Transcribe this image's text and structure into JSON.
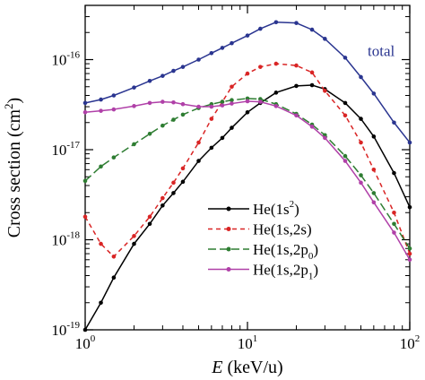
{
  "chart_data": {
    "type": "line",
    "xlabel": {
      "italic": "E",
      "rest": " (keV/u)"
    },
    "ylabel": {
      "base": "Cross section (cm",
      "sup": "2",
      "close": ")"
    },
    "x_scale": "log",
    "y_scale": "log",
    "xlim": [
      1,
      100
    ],
    "ylim": [
      1e-19,
      4e-16
    ],
    "grid": false,
    "x_ticks": [
      {
        "value": 1,
        "label": "10",
        "sup": "0"
      },
      {
        "value": 10,
        "label": "10",
        "sup": "1"
      },
      {
        "value": 100,
        "label": "10",
        "sup": "2"
      }
    ],
    "y_ticks": [
      {
        "value": 1e-19,
        "label": "10",
        "sup": "-19"
      },
      {
        "value": 1e-18,
        "label": "10",
        "sup": "-18"
      },
      {
        "value": 1e-17,
        "label": "10",
        "sup": "-17"
      },
      {
        "value": 1e-16,
        "label": "10",
        "sup": "-16"
      }
    ],
    "annotation": {
      "text": "total",
      "x": 55,
      "y": 1.1e-16,
      "color": "#2a3590"
    },
    "legend": {
      "placement": "lower-right"
    },
    "series": [
      {
        "id": "total",
        "color": "#2a3590",
        "dash": "none",
        "x": [
          1,
          1.25,
          1.5,
          2,
          2.5,
          3,
          3.5,
          4,
          5,
          6,
          7,
          8,
          10,
          12,
          15,
          20,
          25,
          30,
          40,
          50,
          60,
          80,
          100
        ],
        "y": [
          3.3e-17,
          3.6e-17,
          4e-17,
          4.9e-17,
          5.8e-17,
          6.6e-17,
          7.5e-17,
          8.3e-17,
          1e-16,
          1.18e-16,
          1.35e-16,
          1.52e-16,
          1.85e-16,
          2.2e-16,
          2.6e-16,
          2.55e-16,
          2.15e-16,
          1.7e-16,
          1.05e-16,
          6.4e-17,
          4.2e-17,
          2e-17,
          1.2e-17
        ]
      },
      {
        "id": "he-1s2",
        "name": {
          "base": "He(1s",
          "sup": "2",
          "sub": "",
          "close": ")"
        },
        "color": "#000000",
        "dash": "none",
        "x": [
          1,
          1.25,
          1.5,
          2,
          2.5,
          3,
          3.5,
          4,
          5,
          6,
          7,
          8,
          10,
          12,
          15,
          20,
          25,
          30,
          40,
          50,
          60,
          80,
          100
        ],
        "y": [
          1e-19,
          2e-19,
          3.8e-19,
          9e-19,
          1.5e-18,
          2.4e-18,
          3.3e-18,
          4.4e-18,
          7.5e-18,
          1.05e-17,
          1.35e-17,
          1.75e-17,
          2.6e-17,
          3.3e-17,
          4.3e-17,
          5.1e-17,
          5.2e-17,
          4.7e-17,
          3.3e-17,
          2.2e-17,
          1.4e-17,
          5.5e-18,
          2.3e-18
        ]
      },
      {
        "id": "he-1s-2s",
        "name": {
          "base": "He(1s,2s",
          "sup": "",
          "sub": "",
          "close": ")"
        },
        "color": "#d92525",
        "dash": "5,4",
        "x": [
          1,
          1.25,
          1.5,
          2,
          2.5,
          3,
          3.5,
          4,
          5,
          6,
          7,
          8,
          10,
          12,
          15,
          20,
          25,
          30,
          40,
          50,
          60,
          80,
          100
        ],
        "y": [
          1.8e-18,
          9e-19,
          6.5e-19,
          1.1e-18,
          1.8e-18,
          2.9e-18,
          4.3e-18,
          6.2e-18,
          1.2e-17,
          2.2e-17,
          3.4e-17,
          5e-17,
          7e-17,
          8.3e-17,
          9e-17,
          8.6e-17,
          7.2e-17,
          4.5e-17,
          2.4e-17,
          1.2e-17,
          6e-18,
          2e-18,
          7e-19
        ]
      },
      {
        "id": "he-1s-2p0",
        "name": {
          "base": "He(1s,2p",
          "sup": "",
          "sub": "0",
          "close": ")"
        },
        "color": "#2e7d32",
        "dash": "9,4",
        "x": [
          1,
          1.25,
          1.5,
          2,
          2.5,
          3,
          3.5,
          4,
          5,
          6,
          7,
          8,
          10,
          12,
          15,
          20,
          25,
          30,
          40,
          50,
          60,
          80,
          100
        ],
        "y": [
          4.5e-18,
          6.5e-18,
          8.2e-18,
          1.15e-17,
          1.5e-17,
          1.85e-17,
          2.15e-17,
          2.45e-17,
          2.9e-17,
          3.2e-17,
          3.4e-17,
          3.55e-17,
          3.7e-17,
          3.65e-17,
          3.2e-17,
          2.5e-17,
          1.9e-17,
          1.45e-17,
          8.5e-18,
          5.2e-18,
          3.3e-18,
          1.5e-18,
          8e-19
        ]
      },
      {
        "id": "he-1s-2p1",
        "name": {
          "base": "He(1s,2p",
          "sup": "",
          "sub": "1",
          "close": ")"
        },
        "color": "#b040a8",
        "dash": "none",
        "x": [
          1,
          1.25,
          1.5,
          2,
          2.5,
          3,
          3.5,
          4,
          5,
          6,
          7,
          8,
          10,
          12,
          15,
          20,
          25,
          30,
          40,
          50,
          60,
          80,
          100
        ],
        "y": [
          2.6e-17,
          2.7e-17,
          2.8e-17,
          3.05e-17,
          3.3e-17,
          3.4e-17,
          3.35e-17,
          3.2e-17,
          3e-17,
          3e-17,
          3.1e-17,
          3.25e-17,
          3.45e-17,
          3.4e-17,
          3.05e-17,
          2.4e-17,
          1.8e-17,
          1.35e-17,
          7.5e-18,
          4.3e-18,
          2.6e-18,
          1.2e-18,
          6e-19
        ]
      }
    ]
  }
}
